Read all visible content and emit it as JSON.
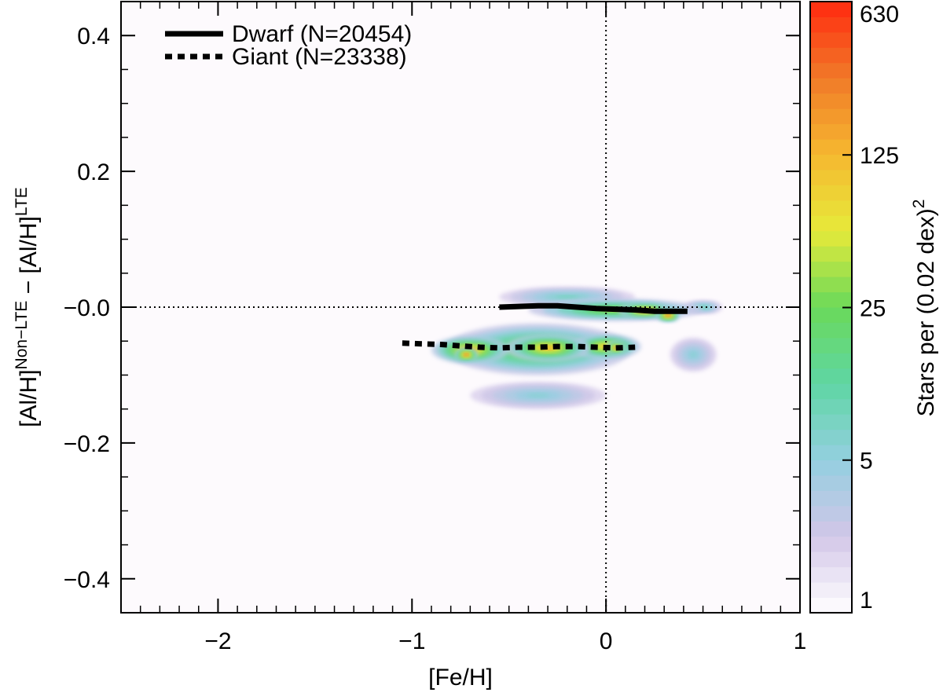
{
  "chart_data": {
    "type": "heatmap",
    "title": "",
    "xlabel": "[Fe/H]",
    "ylabel": {
      "prefix": "[Al/H]",
      "sup1": "Non−LTE",
      "middle": " − [Al/H]",
      "sup2": "LTE"
    },
    "xlim": [
      -2.5,
      1.0
    ],
    "ylim": [
      -0.45,
      0.45
    ],
    "x_ticks": [
      {
        "value": -2,
        "label": "−2"
      },
      {
        "value": -1,
        "label": "−1"
      },
      {
        "value": 0,
        "label": "0"
      },
      {
        "value": 1,
        "label": "1"
      }
    ],
    "y_ticks": [
      {
        "value": 0.4,
        "label": "0.4"
      },
      {
        "value": 0.2,
        "label": "0.2"
      },
      {
        "value": 0.0,
        "label": "−0.0"
      },
      {
        "value": -0.2,
        "label": "−0.2"
      },
      {
        "value": -0.4,
        "label": "−0.4"
      }
    ],
    "reference_lines": {
      "x": 0,
      "y": 0,
      "style": "dotted"
    },
    "grid": false,
    "legend_position": "top-left",
    "series": [
      {
        "name": "Dwarf",
        "count_label": "(N=20454)",
        "style": "solid",
        "x": [
          -0.55,
          -0.45,
          -0.35,
          -0.25,
          -0.15,
          -0.05,
          0.05,
          0.15,
          0.25,
          0.35,
          0.42
        ],
        "y": [
          0.0,
          0.001,
          0.002,
          0.002,
          0.0,
          -0.002,
          -0.003,
          -0.004,
          -0.006,
          -0.006,
          -0.006
        ]
      },
      {
        "name": "Giant",
        "count_label": "(N=23338)",
        "style": "dotted",
        "x": [
          -1.05,
          -0.95,
          -0.85,
          -0.75,
          -0.65,
          -0.55,
          -0.45,
          -0.35,
          -0.25,
          -0.15,
          -0.05,
          0.05,
          0.15
        ],
        "y": [
          -0.053,
          -0.054,
          -0.055,
          -0.057,
          -0.059,
          -0.06,
          -0.059,
          -0.059,
          -0.058,
          -0.058,
          -0.059,
          -0.06,
          -0.059
        ]
      }
    ],
    "density_blobs": [
      {
        "fe": -0.35,
        "al": -0.062,
        "sx": 0.48,
        "sy": 0.038,
        "level": 45
      },
      {
        "fe": 0.05,
        "al": -0.004,
        "sx": 0.45,
        "sy": 0.016,
        "level": 45
      },
      {
        "fe": -0.7,
        "al": -0.063,
        "sx": 0.2,
        "sy": 0.02,
        "level": 150
      },
      {
        "fe": -0.3,
        "al": -0.06,
        "sx": 0.22,
        "sy": 0.02,
        "level": 140
      },
      {
        "fe": 0.0,
        "al": -0.058,
        "sx": 0.18,
        "sy": 0.018,
        "level": 120
      },
      {
        "fe": 0.2,
        "al": -0.005,
        "sx": 0.14,
        "sy": 0.012,
        "level": 220
      },
      {
        "fe": 0.32,
        "al": -0.012,
        "sx": 0.06,
        "sy": 0.01,
        "level": 400
      },
      {
        "fe": -0.72,
        "al": -0.07,
        "sx": 0.06,
        "sy": 0.01,
        "level": 350
      },
      {
        "fe": 0.05,
        "al": -0.06,
        "sx": 0.05,
        "sy": 0.01,
        "level": 260
      },
      {
        "fe": -0.2,
        "al": 0.015,
        "sx": 0.35,
        "sy": 0.015,
        "level": 8
      },
      {
        "fe": -0.35,
        "al": -0.13,
        "sx": 0.35,
        "sy": 0.02,
        "level": 6
      },
      {
        "fe": 0.5,
        "al": 0.0,
        "sx": 0.1,
        "sy": 0.01,
        "level": 10
      },
      {
        "fe": 0.45,
        "al": -0.07,
        "sx": 0.12,
        "sy": 0.025,
        "level": 6
      }
    ],
    "colorbar": {
      "label": "Stars per (0.02 dex)",
      "label_sup": "2",
      "scale": "log",
      "range": [
        1,
        630
      ],
      "ticks": [
        {
          "value": 1,
          "label": "1"
        },
        {
          "value": 5,
          "label": "5"
        },
        {
          "value": 25,
          "label": "25"
        },
        {
          "value": 125,
          "label": "125"
        },
        {
          "value": 630,
          "label": "630"
        }
      ],
      "colors": [
        "#ffffff",
        "#d2c6e8",
        "#94cfe0",
        "#5fd6a4",
        "#6ad95a",
        "#e6ea3a",
        "#f5b830",
        "#f07a28",
        "#ff2a10"
      ]
    }
  }
}
